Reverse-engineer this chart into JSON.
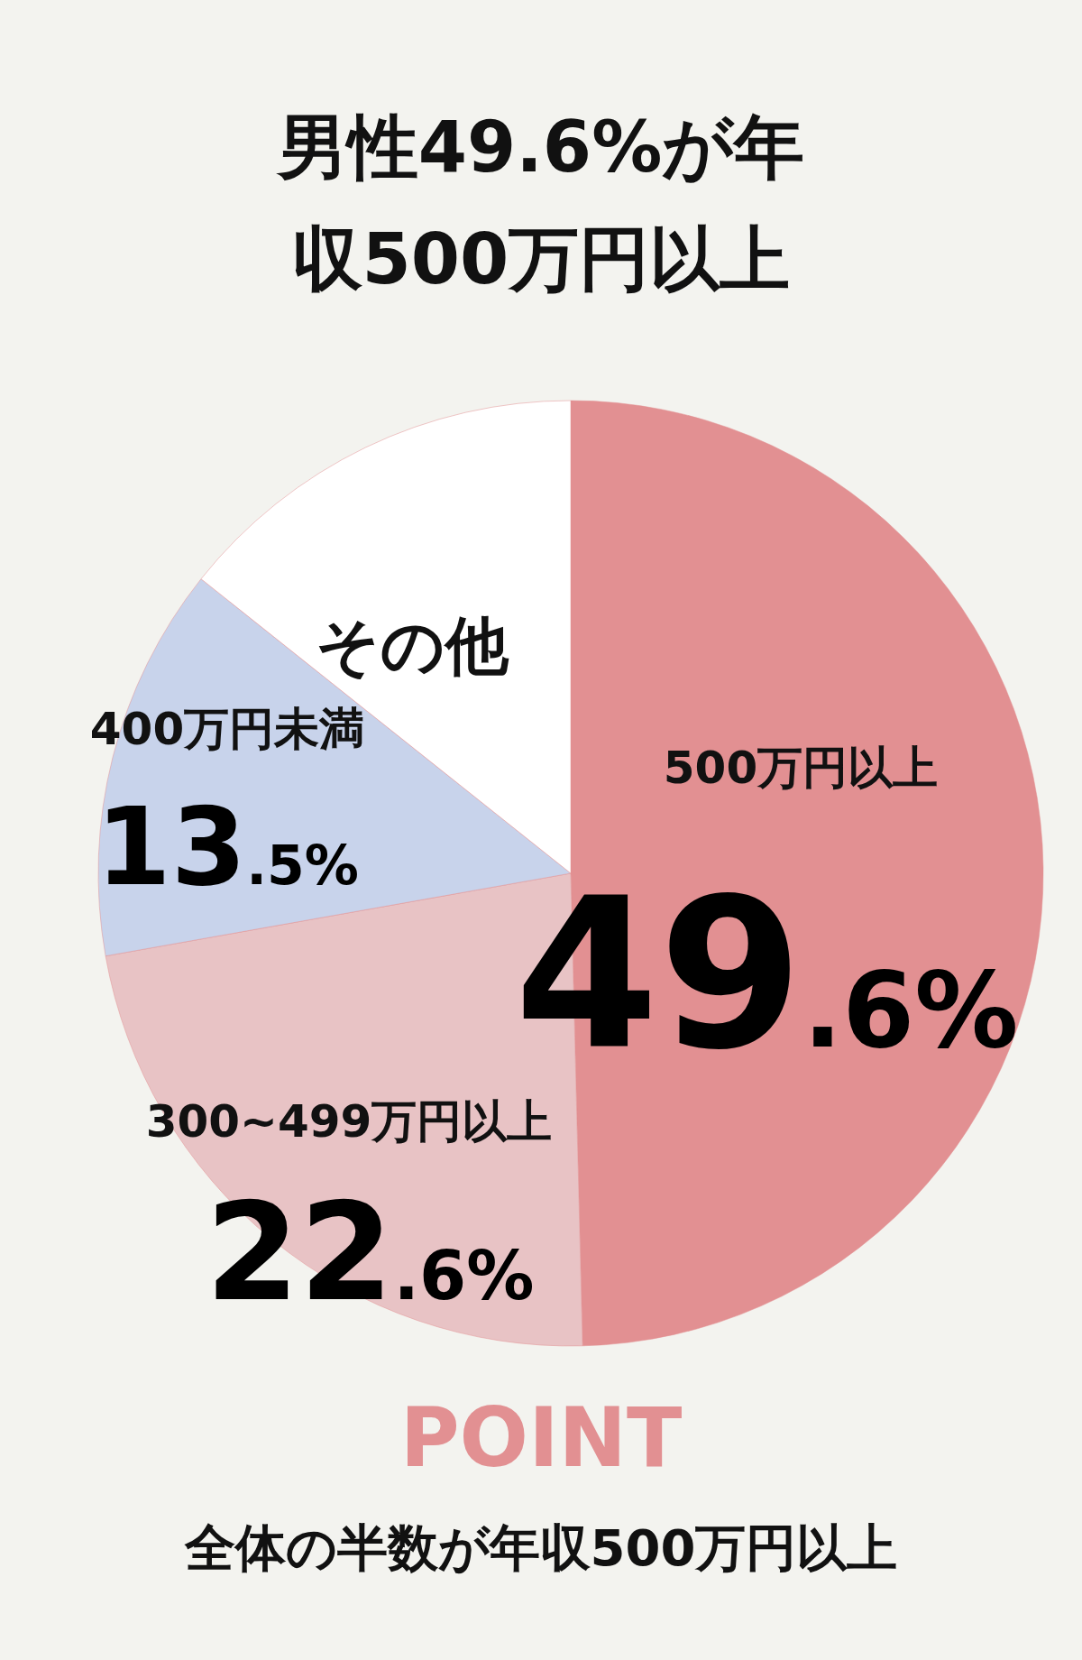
{
  "chart_data": {
    "type": "pie",
    "title": "男性49.6%が年収500万円以上",
    "categories": [
      "500万円以上",
      "300~499万円以上",
      "400万円未満",
      "その他"
    ],
    "values": [
      49.6,
      22.6,
      13.5,
      14.3
    ],
    "colors": [
      "#e29092",
      "#e8c3c5",
      "#c8d3eb",
      "#ffffff"
    ],
    "value_labels": [
      "49.6%",
      "22.6%",
      "13.5%",
      null
    ],
    "annotations": [
      "POINT",
      "全体の半数が年収500万円以上"
    ]
  }
}
